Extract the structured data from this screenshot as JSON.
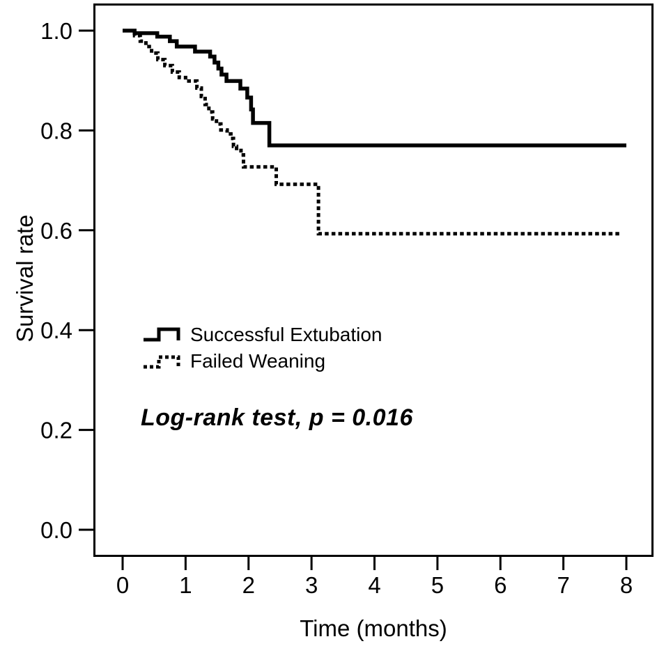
{
  "figure": {
    "background": "#ffffff",
    "line_color": "#000000"
  },
  "chart_data": {
    "type": "line",
    "subtype": "kaplan_meier_step",
    "title": "",
    "xlabel": "Time (months)",
    "ylabel": "Survival rate",
    "xlim": [
      0,
      8
    ],
    "ylim": [
      0,
      1
    ],
    "x_ticks": [
      "0",
      "1",
      "2",
      "3",
      "4",
      "5",
      "6",
      "7",
      "8"
    ],
    "y_ticks": [
      "0.0",
      "0.2",
      "0.4",
      "0.6",
      "0.8",
      "1.0"
    ],
    "grid": false,
    "legend_position": "inside-left-middle",
    "annotation": "Log-rank test, p = 0.016",
    "series": [
      {
        "name": "Successful Extubation",
        "style": "solid",
        "end_t": 8.0,
        "steps": [
          [
            0,
            1.0
          ],
          [
            0.19,
            0.995
          ],
          [
            0.55,
            0.988
          ],
          [
            0.75,
            0.979
          ],
          [
            0.86,
            0.968
          ],
          [
            1.15,
            0.958
          ],
          [
            1.39,
            0.948
          ],
          [
            1.46,
            0.936
          ],
          [
            1.52,
            0.924
          ],
          [
            1.57,
            0.912
          ],
          [
            1.65,
            0.899
          ],
          [
            1.87,
            0.884
          ],
          [
            1.98,
            0.866
          ],
          [
            2.04,
            0.842
          ],
          [
            2.07,
            0.815
          ],
          [
            2.33,
            0.77
          ]
        ]
      },
      {
        "name": "Failed Weaning",
        "style": "dotted",
        "end_t": 7.9,
        "steps": [
          [
            0,
            1.0
          ],
          [
            0.19,
            0.99
          ],
          [
            0.28,
            0.979
          ],
          [
            0.37,
            0.968
          ],
          [
            0.46,
            0.955
          ],
          [
            0.56,
            0.942
          ],
          [
            0.67,
            0.93
          ],
          [
            0.79,
            0.917
          ],
          [
            0.9,
            0.906
          ],
          [
            1.0,
            0.899
          ],
          [
            1.18,
            0.885
          ],
          [
            1.25,
            0.868
          ],
          [
            1.31,
            0.852
          ],
          [
            1.37,
            0.837
          ],
          [
            1.43,
            0.823
          ],
          [
            1.49,
            0.813
          ],
          [
            1.56,
            0.801
          ],
          [
            1.66,
            0.793
          ],
          [
            1.72,
            0.784
          ],
          [
            1.76,
            0.768
          ],
          [
            1.81,
            0.76
          ],
          [
            1.88,
            0.751
          ],
          [
            1.92,
            0.727
          ],
          [
            2.44,
            0.692
          ],
          [
            3.11,
            0.593
          ]
        ]
      }
    ]
  }
}
